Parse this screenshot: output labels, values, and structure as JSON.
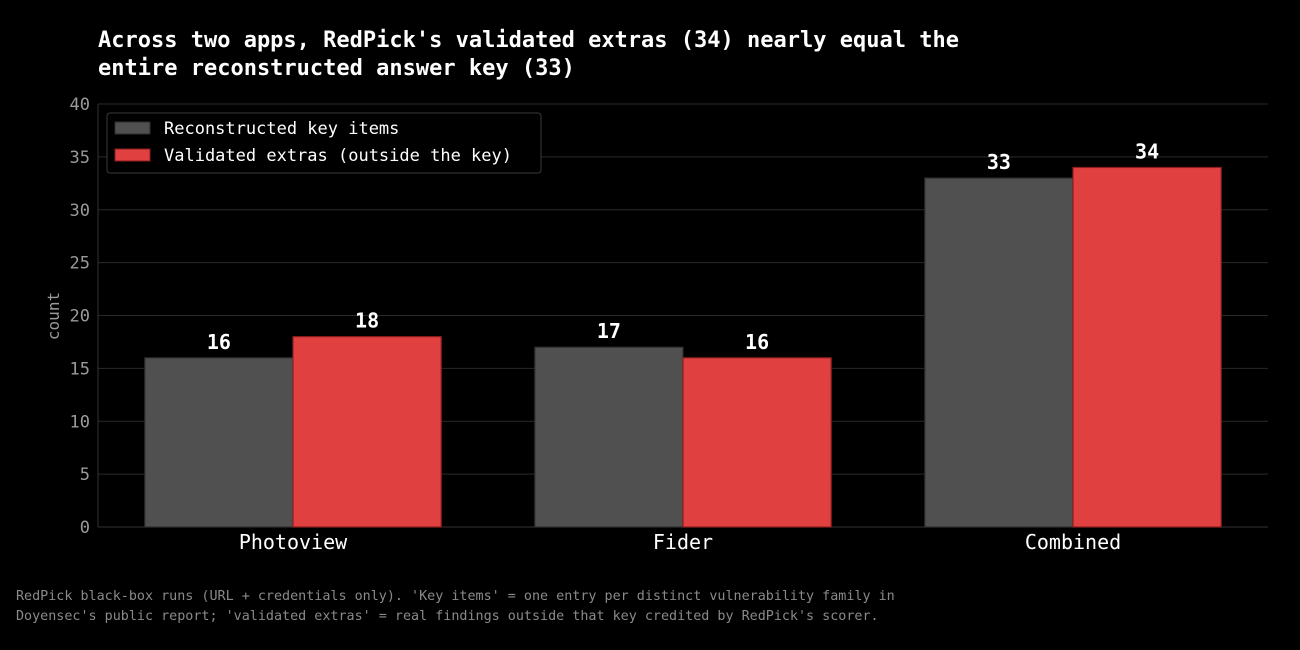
{
  "chart_data": {
    "type": "bar",
    "title_lines": [
      "Across two apps, RedPick's validated extras (34) nearly equal the",
      "entire reconstructed answer key (33)"
    ],
    "xlabel": "",
    "ylabel": "count",
    "ylim": [
      0,
      40
    ],
    "yticks": [
      0,
      5,
      10,
      15,
      20,
      25,
      30,
      35,
      40
    ],
    "grid": "horizontal",
    "legend_position": "top-left",
    "categories": [
      "Photoview",
      "Fider",
      "Combined"
    ],
    "series": [
      {
        "name": "Reconstructed key items",
        "color": "#505050",
        "edge": "#2e2e2e",
        "values": [
          16,
          17,
          33
        ]
      },
      {
        "name": "Validated extras (outside the key)",
        "color": "#e04040",
        "edge": "#8c1e1e",
        "values": [
          18,
          16,
          34
        ]
      }
    ]
  },
  "footnote": {
    "lines": [
      "RedPick black-box runs (URL + credentials only). 'Key items' = one entry per distinct vulnerability family in",
      "Doyensec's public report; 'validated extras' = real findings outside that key credited by RedPick's scorer."
    ]
  }
}
